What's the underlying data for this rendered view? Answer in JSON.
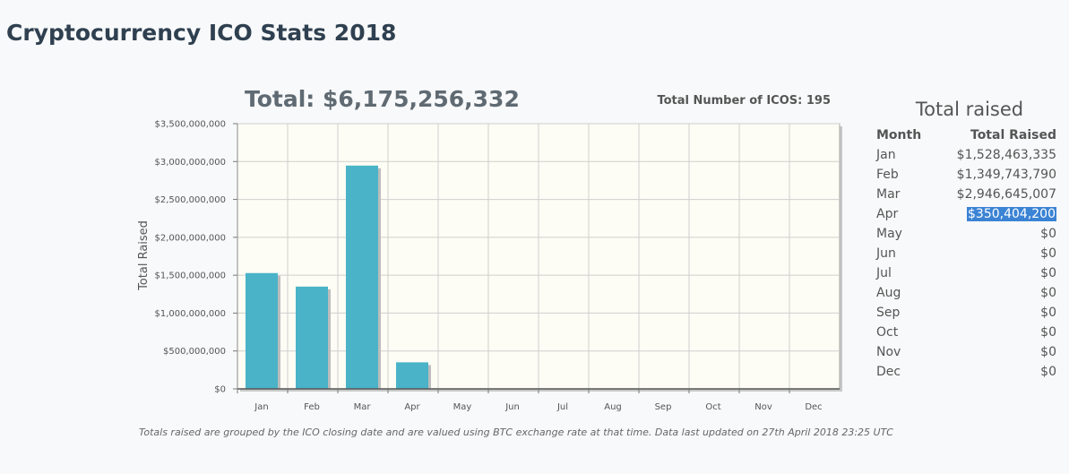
{
  "page": {
    "title": "Cryptocurrency ICO Stats 2018"
  },
  "summary": {
    "total": "Total: $6,175,256,332",
    "ico_count": "Total Number of ICOS: 195"
  },
  "chart_data": {
    "type": "bar",
    "categories": [
      "Jan",
      "Feb",
      "Mar",
      "Apr",
      "May",
      "Jun",
      "Jul",
      "Aug",
      "Sep",
      "Oct",
      "Nov",
      "Dec"
    ],
    "values": [
      1528463335,
      1349743790,
      2946645007,
      350404200,
      0,
      0,
      0,
      0,
      0,
      0,
      0,
      0
    ],
    "ylim": [
      0,
      3500000000
    ],
    "yticks": [
      0,
      500000000,
      1000000000,
      1500000000,
      2000000000,
      2500000000,
      3000000000,
      3500000000
    ],
    "ytick_labels": [
      "$0",
      "$500,000,000",
      "$1,000,000,000",
      "$1,500,000,000",
      "$2,000,000,000",
      "$2,500,000,000",
      "$3,000,000,000",
      "$3,500,000,000"
    ],
    "ylabel": "Total Raised",
    "xlabel": "",
    "colors": {
      "bar": "#4ab3c8",
      "plot_bg": "#fdfdf5",
      "grid": "#cfcfcf",
      "axis": "#555555"
    }
  },
  "note": "Totals raised are grouped by the ICO closing date and are valued using BTC exchange rate at that time. Data last updated on 27th April 2018 23:25 UTC",
  "table": {
    "title": "Total raised",
    "headers": {
      "month": "Month",
      "amount": "Total Raised"
    },
    "rows": [
      {
        "month": "Jan",
        "amount": "$1,528,463,335"
      },
      {
        "month": "Feb",
        "amount": "$1,349,743,790"
      },
      {
        "month": "Mar",
        "amount": "$2,946,645,007"
      },
      {
        "month": "Apr",
        "amount": "$350,404,200",
        "selected": true
      },
      {
        "month": "May",
        "amount": "$0"
      },
      {
        "month": "Jun",
        "amount": "$0"
      },
      {
        "month": "Jul",
        "amount": "$0"
      },
      {
        "month": "Aug",
        "amount": "$0"
      },
      {
        "month": "Sep",
        "amount": "$0"
      },
      {
        "month": "Oct",
        "amount": "$0"
      },
      {
        "month": "Nov",
        "amount": "$0"
      },
      {
        "month": "Dec",
        "amount": "$0"
      }
    ]
  }
}
